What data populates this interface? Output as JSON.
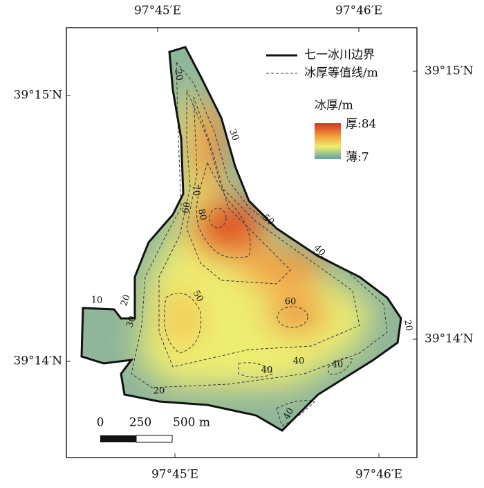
{
  "axes": {
    "top": [
      "97°45′E",
      "97°46′E"
    ],
    "bottom": [
      "97°45′E",
      "97°46′E"
    ],
    "left": [
      "39°15′N",
      "39°14′N"
    ],
    "right": [
      "39°15′N",
      "39°14′N"
    ]
  },
  "legend": {
    "boundary": "七一冰川边界",
    "contour": "冰厚等值线/m",
    "colorbar_title": "冰厚/m",
    "max_label": "厚:84",
    "min_label": "薄:7"
  },
  "contour_labels": [
    "20",
    "30",
    "70",
    "80",
    "60",
    "50",
    "40",
    "10",
    "20",
    "30",
    "50",
    "60",
    "40",
    "20",
    "40",
    "40",
    "20",
    "40"
  ],
  "scale_bar": [
    "0",
    "250",
    "500 m"
  ]
}
